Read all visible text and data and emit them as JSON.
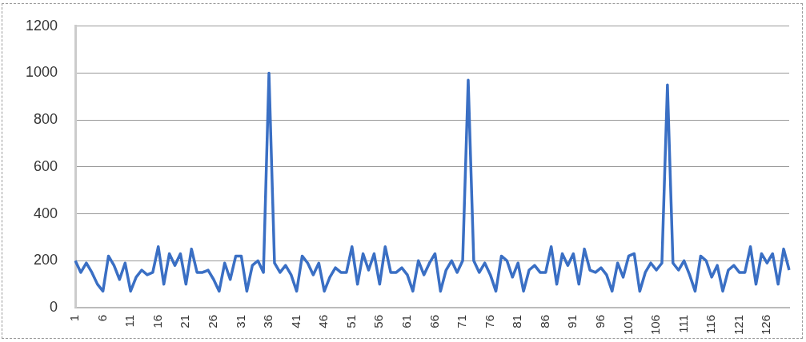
{
  "chart_data": {
    "type": "line",
    "categories": [
      "1",
      null,
      null,
      null,
      null,
      "6",
      null,
      null,
      null,
      null,
      "11",
      null,
      null,
      null,
      null,
      "16",
      null,
      null,
      null,
      null,
      "21",
      null,
      null,
      null,
      null,
      "26",
      null,
      null,
      null,
      null,
      "31",
      null,
      null,
      null,
      null,
      "36",
      null,
      null,
      null,
      null,
      "41",
      null,
      null,
      null,
      null,
      "46",
      null,
      null,
      null,
      null,
      "51",
      null,
      null,
      null,
      null,
      "56",
      null,
      null,
      null,
      null,
      "61",
      null,
      null,
      null,
      null,
      "66",
      null,
      null,
      null,
      null,
      "71",
      null,
      null,
      null,
      null,
      "76",
      null,
      null,
      null,
      null,
      "81",
      null,
      null,
      null,
      null,
      "86",
      null,
      null,
      null,
      null,
      "91",
      null,
      null,
      null,
      null,
      "96",
      null,
      null,
      null,
      null,
      "101",
      null,
      null,
      null,
      null,
      "106",
      null,
      null,
      null,
      null,
      "111",
      null,
      null,
      null,
      null,
      "116",
      null,
      null,
      null,
      null,
      "121",
      null,
      null,
      null,
      null,
      "126",
      null,
      null,
      null,
      null
    ],
    "series": [
      {
        "color": "#3a6fc4",
        "values": [
          200,
          150,
          190,
          150,
          100,
          70,
          220,
          180,
          120,
          190,
          70,
          130,
          160,
          140,
          150,
          260,
          100,
          230,
          180,
          230,
          100,
          250,
          150,
          150,
          160,
          120,
          70,
          190,
          120,
          220,
          220,
          70,
          180,
          200,
          150,
          1000,
          190,
          150,
          180,
          140,
          70,
          220,
          190,
          140,
          190,
          70,
          130,
          170,
          150,
          150,
          260,
          100,
          230,
          160,
          230,
          100,
          260,
          150,
          150,
          170,
          140,
          70,
          200,
          140,
          190,
          230,
          70,
          160,
          200,
          150,
          200,
          970,
          200,
          150,
          190,
          140,
          70,
          220,
          200,
          130,
          190,
          70,
          160,
          180,
          150,
          150,
          260,
          100,
          230,
          180,
          230,
          100,
          250,
          160,
          150,
          170,
          140,
          70,
          190,
          130,
          220,
          230,
          70,
          150,
          190,
          160,
          190,
          950,
          190,
          160,
          200,
          140,
          70,
          220,
          200,
          130,
          180,
          70,
          160,
          180,
          150,
          150,
          260,
          100,
          230,
          190,
          230,
          100,
          250,
          160
        ]
      }
    ],
    "ylim": [
      0,
      1200
    ],
    "yticks": [
      0,
      200,
      400,
      600,
      800,
      1000,
      1200
    ],
    "grid": "y",
    "marker": "none",
    "line_style": "solid"
  }
}
